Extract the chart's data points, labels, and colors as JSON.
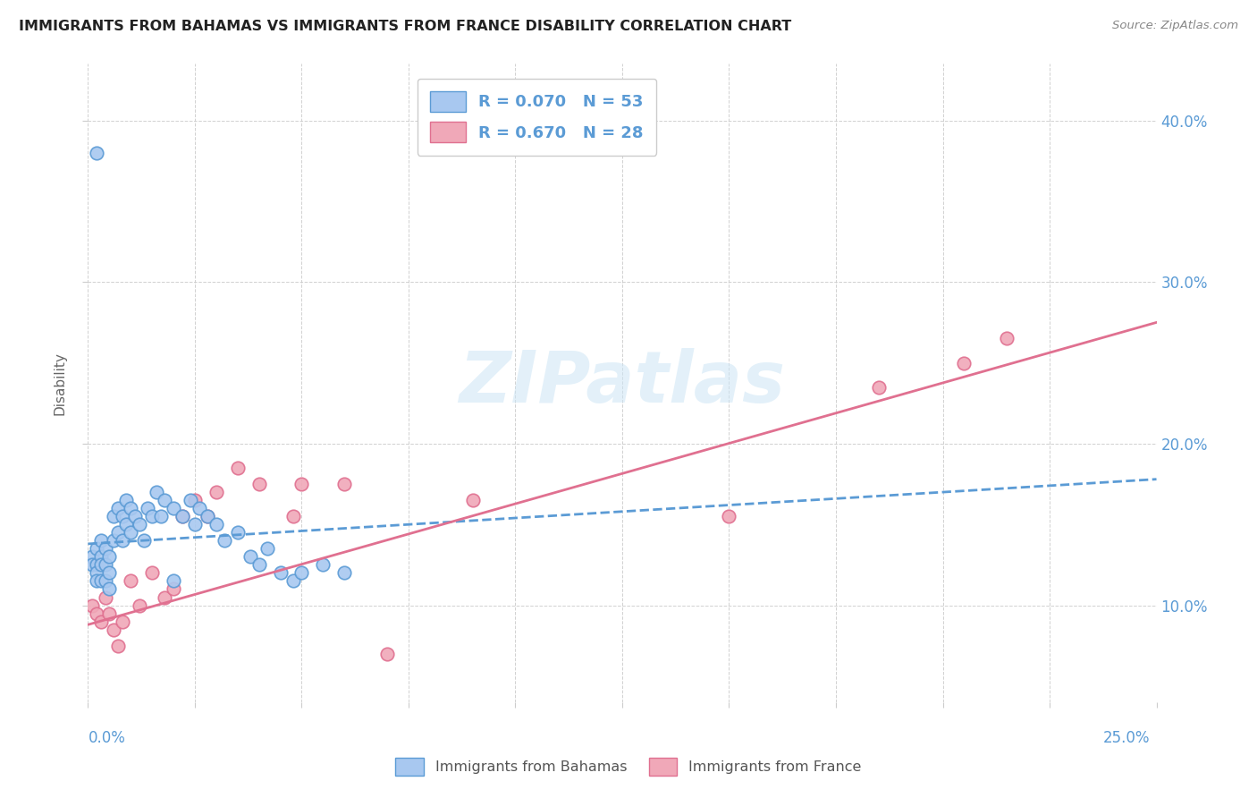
{
  "title": "IMMIGRANTS FROM BAHAMAS VS IMMIGRANTS FROM FRANCE DISABILITY CORRELATION CHART",
  "source": "Source: ZipAtlas.com",
  "ylabel": "Disability",
  "yticks_right": [
    "10.0%",
    "20.0%",
    "30.0%",
    "40.0%"
  ],
  "yticks_right_vals": [
    0.1,
    0.2,
    0.3,
    0.4
  ],
  "xlim": [
    0.0,
    0.25
  ],
  "ylim": [
    0.04,
    0.435
  ],
  "color_bahamas": "#a8c8f0",
  "color_france": "#f0a8b8",
  "line_color_bahamas": "#5b9bd5",
  "line_color_france": "#e07090",
  "bahamas_x": [
    0.001,
    0.001,
    0.002,
    0.002,
    0.002,
    0.002,
    0.003,
    0.003,
    0.003,
    0.003,
    0.004,
    0.004,
    0.004,
    0.005,
    0.005,
    0.005,
    0.006,
    0.006,
    0.007,
    0.007,
    0.008,
    0.008,
    0.009,
    0.009,
    0.01,
    0.01,
    0.011,
    0.012,
    0.013,
    0.014,
    0.015,
    0.016,
    0.017,
    0.018,
    0.02,
    0.022,
    0.024,
    0.025,
    0.026,
    0.028,
    0.03,
    0.032,
    0.035,
    0.038,
    0.04,
    0.042,
    0.045,
    0.048,
    0.05,
    0.055,
    0.06,
    0.02,
    0.002
  ],
  "bahamas_y": [
    0.13,
    0.125,
    0.135,
    0.125,
    0.12,
    0.115,
    0.14,
    0.13,
    0.125,
    0.115,
    0.135,
    0.125,
    0.115,
    0.13,
    0.12,
    0.11,
    0.155,
    0.14,
    0.16,
    0.145,
    0.155,
    0.14,
    0.165,
    0.15,
    0.16,
    0.145,
    0.155,
    0.15,
    0.14,
    0.16,
    0.155,
    0.17,
    0.155,
    0.165,
    0.16,
    0.155,
    0.165,
    0.15,
    0.16,
    0.155,
    0.15,
    0.14,
    0.145,
    0.13,
    0.125,
    0.135,
    0.12,
    0.115,
    0.12,
    0.125,
    0.12,
    0.115,
    0.38
  ],
  "france_x": [
    0.001,
    0.002,
    0.003,
    0.004,
    0.005,
    0.006,
    0.007,
    0.008,
    0.01,
    0.012,
    0.015,
    0.018,
    0.02,
    0.022,
    0.025,
    0.028,
    0.03,
    0.035,
    0.04,
    0.048,
    0.05,
    0.06,
    0.07,
    0.09,
    0.15,
    0.185,
    0.205,
    0.215
  ],
  "france_y": [
    0.1,
    0.095,
    0.09,
    0.105,
    0.095,
    0.085,
    0.075,
    0.09,
    0.115,
    0.1,
    0.12,
    0.105,
    0.11,
    0.155,
    0.165,
    0.155,
    0.17,
    0.185,
    0.175,
    0.155,
    0.175,
    0.175,
    0.07,
    0.165,
    0.155,
    0.235,
    0.25,
    0.265
  ],
  "bahamas_trend_x": [
    0.0,
    0.25
  ],
  "bahamas_trend_y": [
    0.138,
    0.178
  ],
  "france_trend_x": [
    0.0,
    0.25
  ],
  "france_trend_y": [
    0.088,
    0.275
  ]
}
